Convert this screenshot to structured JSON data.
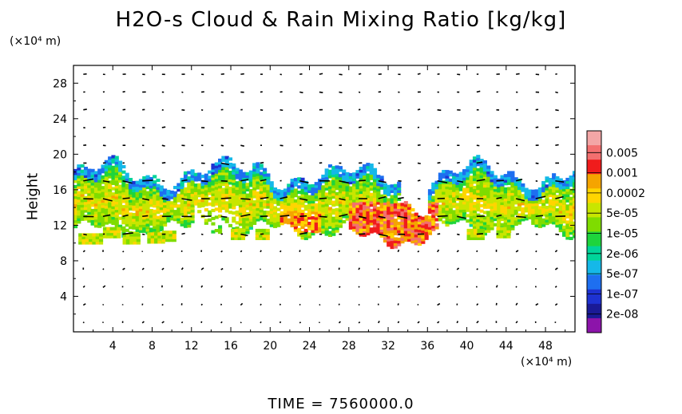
{
  "chart_data": {
    "type": "heatmap",
    "title": "H2O-s Cloud & Rain Mixing Ratio [kg/kg]",
    "xlabel": "",
    "ylabel": "Height",
    "x_unit": "(×10⁴ m)",
    "y_unit": "(×10⁴ m)",
    "xlim": [
      0,
      51
    ],
    "ylim": [
      0,
      30
    ],
    "x_ticks": [
      "4",
      "8",
      "12",
      "16",
      "20",
      "24",
      "28",
      "32",
      "36",
      "40",
      "44",
      "48"
    ],
    "y_ticks": [
      "4",
      "8",
      "12",
      "16",
      "20",
      "24",
      "28"
    ],
    "grid": false,
    "colorbar": {
      "labels": [
        "0.005",
        "0.001",
        "0.0002",
        "5e-05",
        "1e-05",
        "2e-06",
        "5e-07",
        "1e-07",
        "2e-08"
      ],
      "colors": [
        "#f3a6a6",
        "#f36f6f",
        "#f01c1c",
        "#f5a400",
        "#ffd500",
        "#c8e600",
        "#7fdc00",
        "#1ed43c",
        "#00d49a",
        "#15b8e8",
        "#1e6ff0",
        "#1e32d2",
        "#1a1a96",
        "#8c14aa"
      ]
    },
    "cloud_bands": [
      {
        "x": [
          0.5,
          12.5
        ],
        "y": [
          10.5,
          19.5
        ]
      },
      {
        "x": [
          12.5,
          33
        ],
        "y": [
          11,
          19
        ]
      },
      {
        "x": [
          33,
          51
        ],
        "y": [
          10,
          19
        ]
      }
    ],
    "wind_vectors": "quiver field"
  },
  "footer": {
    "time_label": "TIME = 7560000.0"
  }
}
